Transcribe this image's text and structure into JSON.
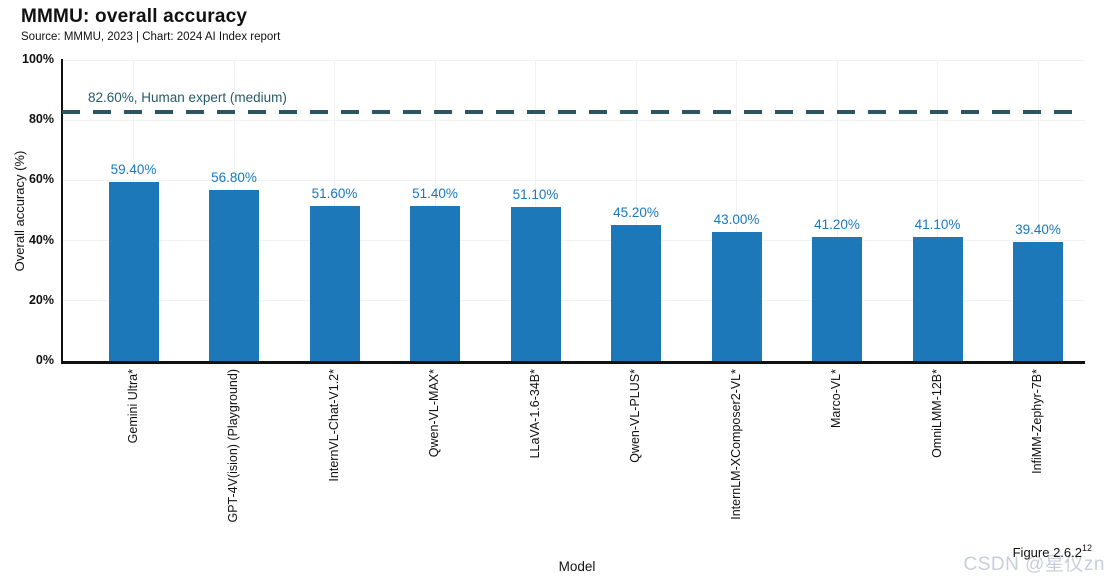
{
  "page": {
    "title": "MMMU: overall accuracy",
    "subtitle": "Source: MMMU, 2023 | Chart: 2024 AI Index report",
    "figure_reference": {
      "text": "Figure 2.6.2",
      "superscript": "12"
    },
    "watermark": "CSDN @星仪zn"
  },
  "chart_data": {
    "type": "bar",
    "title": "MMMU: overall accuracy",
    "xlabel": "Model",
    "ylabel": "Overall accuracy (%)",
    "ylim": [
      0,
      100
    ],
    "ytick_step": 20,
    "ytick_suffix": "%",
    "grid": true,
    "legend_position": "none",
    "categories": [
      "Gemini Ultra*",
      "GPT-4V(ision) (Playground)",
      "InternVL-Chat-V1.2*",
      "Qwen-VL-MAX*",
      "LLaVA-1.6-34B*",
      "Qwen-VL-PLUS*",
      "InternLM-XComposer2-VL*",
      "Marco-VL*",
      "OmniLMM-12B*",
      "InfiMM-Zephyr-7B*"
    ],
    "values": [
      59.4,
      56.8,
      51.6,
      51.4,
      51.1,
      45.2,
      43.0,
      41.2,
      41.1,
      39.4
    ],
    "value_labels": [
      "59.40%",
      "56.80%",
      "51.60%",
      "51.40%",
      "51.10%",
      "45.20%",
      "43.00%",
      "41.20%",
      "41.10%",
      "39.40%"
    ],
    "reference_line": {
      "value": 82.6,
      "label": "82.60%, Human expert (medium)"
    },
    "colors": {
      "bar": "#1d78b9",
      "value_label": "#1779c0",
      "reference_line": "#2a5561",
      "reference_label": "#295a68",
      "gridline": "#f2f2f6",
      "axis": "#111111",
      "watermark": "#c9cedd"
    }
  }
}
